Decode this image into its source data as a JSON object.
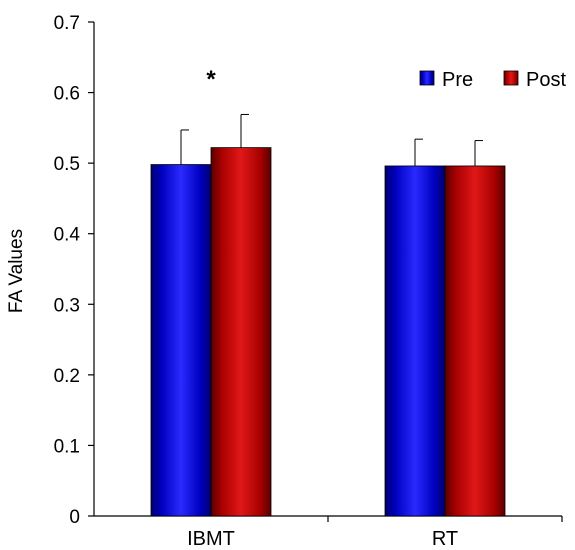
{
  "chart_data": {
    "type": "bar",
    "title": "",
    "xlabel": "",
    "ylabel": "FA Values",
    "ylim": [
      0,
      0.7
    ],
    "yticks": [
      "0",
      "0.1",
      "0.2",
      "0.3",
      "0.4",
      "0.5",
      "0.6",
      "0.7"
    ],
    "categories": [
      "IBMT",
      "RT"
    ],
    "series": [
      {
        "name": "Pre",
        "values": [
          0.498,
          0.496
        ],
        "errors": [
          0.049,
          0.038
        ],
        "color": "#1010e0"
      },
      {
        "name": "Post",
        "values": [
          0.522,
          0.496
        ],
        "errors": [
          0.047,
          0.036
        ],
        "color": "#cc1010"
      }
    ],
    "annotations": [
      {
        "text": "*",
        "category": "IBMT",
        "value": 0.625
      }
    ],
    "legend": "top-right",
    "grid": false
  }
}
